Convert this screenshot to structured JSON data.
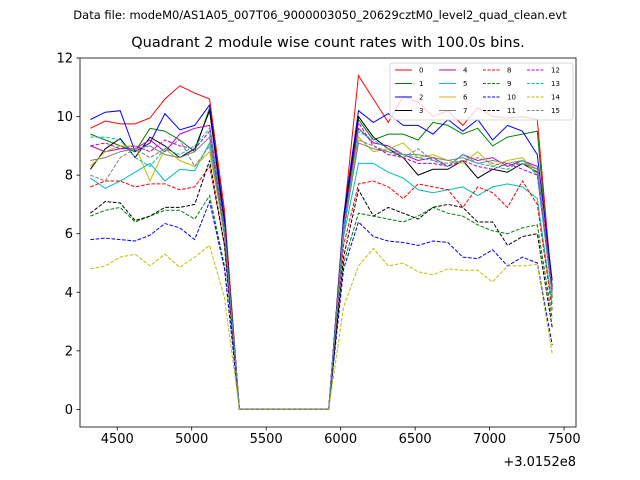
{
  "suptitle": "Data file: modeM0/AS1A05_007T06_9000003050_20629cztM0_level2_quad_clean.evt",
  "chart_data": {
    "type": "line",
    "title": "Quadrant 2 module wise count rates with 100.0s bins.",
    "xlabel": "",
    "ylabel": "",
    "x_offset_label": "+3.0152e8",
    "xlim": [
      4250,
      7580
    ],
    "ylim": [
      -0.6,
      12
    ],
    "x_ticks": [
      4500,
      5000,
      5500,
      6000,
      6500,
      7000,
      7500
    ],
    "y_ticks": [
      0,
      2,
      4,
      6,
      8,
      10,
      12
    ],
    "legend_position": "top-right",
    "legend_columns": 4,
    "x": [
      4320,
      4420,
      4520,
      4620,
      4720,
      4820,
      4920,
      5020,
      5120,
      5220,
      5320,
      5420,
      5520,
      5620,
      5720,
      5820,
      5920,
      6020,
      6120,
      6220,
      6320,
      6420,
      6520,
      6620,
      6720,
      6820,
      6920,
      7020,
      7120,
      7220,
      7320,
      7420
    ],
    "series": [
      {
        "name": "0",
        "color": "#ff0000",
        "dash": "solid",
        "values": [
          9.6,
          9.85,
          9.75,
          9.75,
          9.95,
          10.6,
          11.05,
          10.8,
          10.6,
          6.8,
          0,
          0,
          0,
          0,
          0,
          0,
          0,
          6.5,
          11.4,
          10.6,
          9.8,
          10.7,
          10.5,
          10.0,
          10.2,
          9.7,
          10.3,
          10.0,
          9.95,
          10.0,
          9.9,
          4.1
        ]
      },
      {
        "name": "1",
        "color": "#008000",
        "dash": "solid",
        "values": [
          9.4,
          9.2,
          9.0,
          8.8,
          9.6,
          9.5,
          9.2,
          8.8,
          10.3,
          6.5,
          0,
          0,
          0,
          0,
          0,
          0,
          0,
          6.4,
          9.9,
          9.2,
          9.4,
          9.4,
          9.2,
          9.8,
          9.7,
          9.4,
          9.6,
          9.0,
          9.3,
          9.4,
          9.5,
          3.8
        ]
      },
      {
        "name": "2",
        "color": "#0000ff",
        "dash": "solid",
        "values": [
          9.9,
          10.15,
          10.2,
          8.8,
          9.1,
          10.1,
          9.55,
          9.7,
          10.4,
          6.5,
          0,
          0,
          0,
          0,
          0,
          0,
          0,
          6.6,
          10.2,
          9.8,
          10.1,
          9.7,
          9.7,
          9.4,
          9.9,
          9.5,
          9.9,
          9.2,
          9.7,
          9.5,
          8.7,
          4.4
        ]
      },
      {
        "name": "3",
        "color": "#000000",
        "dash": "solid",
        "values": [
          8.2,
          8.9,
          9.25,
          8.6,
          9.3,
          9.0,
          8.6,
          8.9,
          10.2,
          6.3,
          0,
          0,
          0,
          0,
          0,
          0,
          0,
          6.4,
          10.0,
          9.3,
          8.9,
          8.6,
          8.0,
          8.2,
          8.2,
          8.5,
          7.9,
          8.2,
          8.1,
          8.4,
          8.1,
          4.2
        ]
      },
      {
        "name": "4",
        "color": "#bf00bf",
        "dash": "solid",
        "values": [
          9.0,
          8.8,
          8.9,
          8.9,
          9.2,
          8.8,
          9.4,
          9.6,
          9.7,
          6.2,
          0,
          0,
          0,
          0,
          0,
          0,
          0,
          6.3,
          9.6,
          9.1,
          9.0,
          8.7,
          8.5,
          8.6,
          8.3,
          8.7,
          8.5,
          8.6,
          8.3,
          8.5,
          8.3,
          4.1
        ]
      },
      {
        "name": "5",
        "color": "#00bfbf",
        "dash": "solid",
        "values": [
          7.9,
          7.55,
          7.8,
          8.1,
          8.4,
          7.8,
          8.2,
          8.15,
          9.1,
          5.9,
          0,
          0,
          0,
          0,
          0,
          0,
          0,
          5.9,
          8.4,
          8.4,
          8.1,
          7.9,
          7.5,
          7.4,
          7.5,
          7.6,
          7.3,
          7.6,
          7.7,
          7.6,
          7.2,
          3.6
        ]
      },
      {
        "name": "6",
        "color": "#bfbf00",
        "dash": "solid",
        "values": [
          8.3,
          8.8,
          9.0,
          9.0,
          7.8,
          8.9,
          8.5,
          8.3,
          8.8,
          6.0,
          0,
          0,
          0,
          0,
          0,
          0,
          0,
          6.2,
          9.3,
          8.8,
          8.9,
          9.1,
          8.6,
          8.7,
          8.5,
          8.4,
          8.8,
          8.3,
          8.5,
          8.6,
          8.0,
          3.9
        ]
      },
      {
        "name": "7",
        "color": "#7f7f7f",
        "dash": "solid",
        "values": [
          8.5,
          8.6,
          8.8,
          8.9,
          9.0,
          8.7,
          8.6,
          8.8,
          9.3,
          6.1,
          0,
          0,
          0,
          0,
          0,
          0,
          0,
          6.1,
          9.1,
          8.9,
          8.8,
          8.7,
          8.7,
          8.6,
          8.5,
          8.6,
          8.4,
          8.5,
          8.4,
          8.5,
          8.2,
          4.0
        ]
      },
      {
        "name": "8",
        "color": "#ff0000",
        "dash": "dashed",
        "values": [
          7.6,
          7.8,
          7.8,
          7.6,
          7.7,
          7.7,
          7.5,
          7.6,
          8.3,
          5.6,
          0,
          0,
          0,
          0,
          0,
          0,
          0,
          5.6,
          7.7,
          7.8,
          7.6,
          7.2,
          7.7,
          7.6,
          7.5,
          6.9,
          7.6,
          7.4,
          6.9,
          7.8,
          7.0,
          3.4
        ]
      },
      {
        "name": "9",
        "color": "#008000",
        "dash": "dashed",
        "values": [
          6.6,
          6.8,
          6.9,
          6.4,
          6.6,
          6.8,
          6.8,
          6.5,
          7.3,
          4.9,
          0,
          0,
          0,
          0,
          0,
          0,
          0,
          5.0,
          6.7,
          6.6,
          6.5,
          6.4,
          6.6,
          6.9,
          6.7,
          6.6,
          6.3,
          6.1,
          6.0,
          6.2,
          6.3,
          3.1
        ]
      },
      {
        "name": "10",
        "color": "#0000ff",
        "dash": "dashed",
        "values": [
          5.8,
          5.85,
          5.8,
          5.75,
          5.95,
          6.35,
          6.2,
          5.8,
          7.1,
          4.8,
          0,
          0,
          0,
          0,
          0,
          0,
          0,
          4.8,
          6.4,
          5.9,
          5.75,
          5.7,
          5.6,
          5.75,
          5.7,
          5.2,
          5.15,
          5.45,
          4.9,
          5.2,
          5.0,
          2.2
        ]
      },
      {
        "name": "11",
        "color": "#000000",
        "dash": "dashed",
        "values": [
          6.7,
          7.1,
          7.05,
          6.45,
          6.6,
          6.9,
          6.9,
          7.0,
          8.5,
          5.6,
          0,
          0,
          0,
          0,
          0,
          0,
          0,
          5.2,
          7.5,
          6.6,
          6.9,
          6.7,
          6.5,
          6.9,
          7.0,
          6.9,
          6.4,
          6.4,
          5.6,
          5.9,
          6.0,
          2.8
        ]
      },
      {
        "name": "12",
        "color": "#bf00bf",
        "dash": "dashed",
        "values": [
          9.0,
          9.1,
          8.9,
          9.0,
          8.8,
          9.2,
          9.0,
          8.9,
          9.5,
          6.0,
          0,
          0,
          0,
          0,
          0,
          0,
          0,
          6.2,
          9.8,
          9.0,
          8.7,
          8.6,
          8.4,
          8.4,
          8.3,
          8.5,
          8.3,
          8.2,
          8.4,
          8.2,
          8.0,
          4.0
        ]
      },
      {
        "name": "13",
        "color": "#00bfbf",
        "dash": "dashed",
        "values": [
          9.3,
          9.3,
          9.2,
          8.6,
          8.3,
          8.9,
          8.7,
          9.0,
          9.6,
          6.2,
          0,
          0,
          0,
          0,
          0,
          0,
          0,
          6.2,
          9.5,
          9.2,
          8.9,
          8.7,
          8.6,
          8.5,
          8.3,
          8.7,
          8.4,
          8.3,
          8.2,
          8.5,
          8.0,
          3.9
        ]
      },
      {
        "name": "14",
        "color": "#bfbf00",
        "dash": "dashed",
        "values": [
          4.8,
          4.9,
          5.2,
          5.3,
          4.9,
          5.3,
          4.85,
          5.2,
          5.6,
          3.8,
          0,
          0,
          0,
          0,
          0,
          0,
          0,
          3.5,
          4.9,
          5.5,
          4.9,
          5.0,
          4.7,
          4.6,
          4.8,
          4.75,
          4.75,
          4.35,
          4.9,
          4.9,
          4.95,
          1.9
        ]
      },
      {
        "name": "15",
        "color": "#7f7f7f",
        "dash": "dashed",
        "values": [
          8.0,
          7.8,
          8.6,
          8.9,
          8.6,
          8.9,
          9.2,
          8.3,
          9.0,
          6.0,
          0,
          0,
          0,
          0,
          0,
          0,
          0,
          6.0,
          9.2,
          9.0,
          8.8,
          8.6,
          8.9,
          8.5,
          8.4,
          8.5,
          8.6,
          8.4,
          8.3,
          8.4,
          8.2,
          3.9
        ]
      }
    ]
  }
}
